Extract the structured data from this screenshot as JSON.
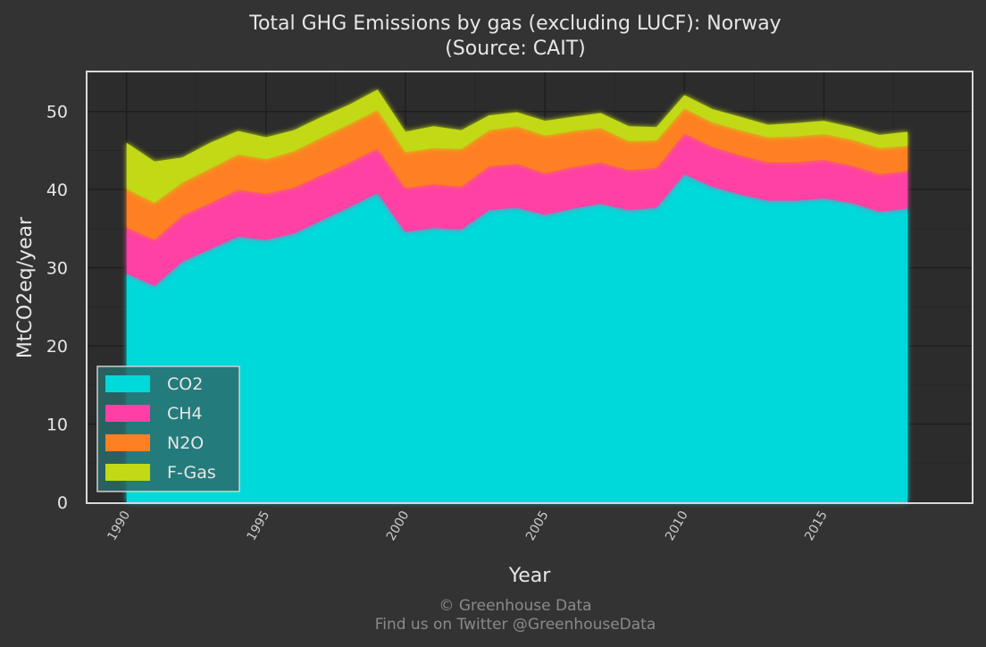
{
  "chart_data": {
    "type": "area",
    "stacked": true,
    "title": "Total GHG Emissions by gas (excluding LUCF): Norway",
    "subtitle": "(Source: CAIT)",
    "xlabel": "Year",
    "ylabel": "MtCO2eq/year",
    "xlim": [
      1988.6,
      2020.3
    ],
    "ylim": [
      0,
      55
    ],
    "x_ticks": [
      1990,
      1995,
      2000,
      2005,
      2010,
      2015
    ],
    "y_ticks": [
      0,
      10,
      20,
      30,
      40,
      50
    ],
    "grid": true,
    "legend_position": "bottom-left",
    "x": [
      1990,
      1991,
      1992,
      1993,
      1994,
      1995,
      1996,
      1997,
      1998,
      1999,
      2000,
      2001,
      2002,
      2003,
      2004,
      2005,
      2006,
      2007,
      2008,
      2009,
      2010,
      2011,
      2012,
      2013,
      2014,
      2015,
      2016,
      2017,
      2018
    ],
    "series": [
      {
        "name": "CO2",
        "color": "#00d9d9",
        "values": [
          29.3,
          27.7,
          30.8,
          32.4,
          34.0,
          33.6,
          34.4,
          36.1,
          37.8,
          39.6,
          34.6,
          35.1,
          34.9,
          37.4,
          37.7,
          36.8,
          37.6,
          38.2,
          37.4,
          37.7,
          42.0,
          40.4,
          39.4,
          38.6,
          38.6,
          38.9,
          38.3,
          37.2,
          37.6
        ]
      },
      {
        "name": "CH4",
        "color": "#ff3fa5",
        "values": [
          5.9,
          5.9,
          5.9,
          5.9,
          6.0,
          5.9,
          5.9,
          5.8,
          5.7,
          5.7,
          5.6,
          5.6,
          5.5,
          5.6,
          5.6,
          5.3,
          5.3,
          5.3,
          5.1,
          5.1,
          5.2,
          5.1,
          5.0,
          4.9,
          4.9,
          4.9,
          4.8,
          4.8,
          4.8
        ]
      },
      {
        "name": "N2O",
        "color": "#ff8020",
        "values": [
          4.9,
          4.7,
          4.2,
          4.4,
          4.5,
          4.4,
          4.6,
          4.8,
          4.9,
          4.9,
          4.6,
          4.6,
          4.8,
          4.6,
          4.8,
          4.8,
          4.6,
          4.4,
          3.7,
          3.5,
          3.2,
          3.1,
          3.2,
          3.2,
          3.3,
          3.3,
          3.3,
          3.3,
          3.2
        ]
      },
      {
        "name": "F-Gas",
        "color": "#c2d916",
        "values": [
          5.9,
          5.3,
          3.2,
          3.3,
          3.0,
          2.8,
          2.7,
          2.6,
          2.5,
          2.6,
          2.6,
          2.8,
          2.4,
          1.9,
          1.8,
          1.9,
          1.8,
          1.9,
          1.9,
          1.7,
          1.7,
          1.7,
          1.7,
          1.6,
          1.7,
          1.7,
          1.6,
          1.7,
          1.8
        ]
      }
    ]
  },
  "credits": {
    "line1": "© Greenhouse Data",
    "line2": "Find us on Twitter @GreenhouseData"
  }
}
